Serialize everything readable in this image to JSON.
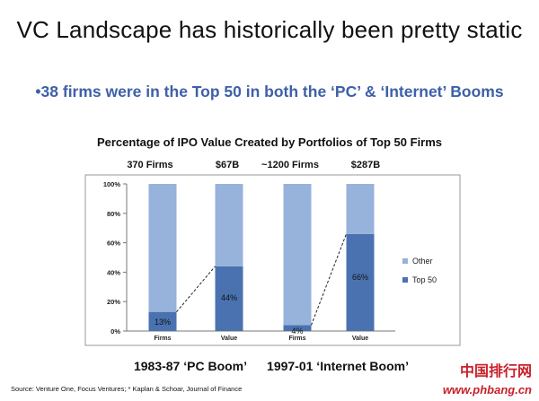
{
  "slide": {
    "title": "VC Landscape has historically been pretty static",
    "bullet": "•38 firms were in the Top 50 in both the ‘PC’ & ‘Internet’ Booms",
    "source": "Source: Venture One, Focus Ventures; * Kaplan & Schoar, Journal of Finance",
    "top_labels": [
      "370 Firms",
      "$67B",
      "~1200 Firms",
      "$287B"
    ],
    "era_labels": [
      "1983-87  ‘PC Boom’",
      "1997-01 ‘Internet Boom’"
    ],
    "watermark": {
      "line1": "中国排行网",
      "line2": "www.phbang.cn"
    }
  },
  "chart_data": {
    "type": "bar",
    "stacked": true,
    "title": "Percentage of IPO Value Created by Portfolios of Top 50 Firms",
    "categories": [
      "Firms",
      "Value",
      "Firms",
      "Value"
    ],
    "series": [
      {
        "name": "Top 50",
        "values": [
          13,
          44,
          4,
          66
        ],
        "color": "#4a72b0"
      },
      {
        "name": "Other",
        "values": [
          87,
          56,
          96,
          34
        ],
        "color": "#97b2db"
      }
    ],
    "data_labels": [
      "13%",
      "44%",
      "4%",
      "66%"
    ],
    "yticks": [
      "0%",
      "20%",
      "40%",
      "60%",
      "80%",
      "100%"
    ],
    "ylim": [
      0,
      100
    ],
    "legend_position": "right",
    "connectors": "dashed"
  }
}
